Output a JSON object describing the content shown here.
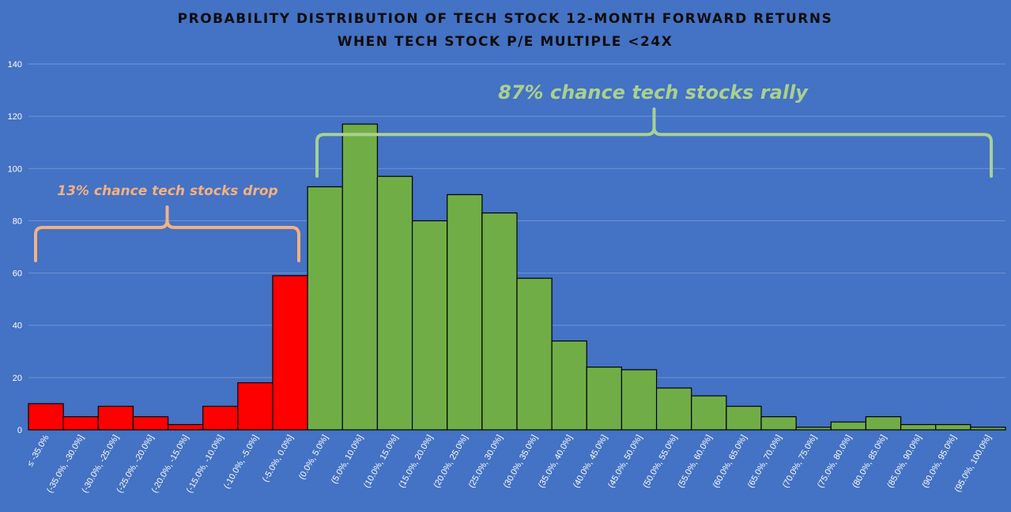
{
  "chart_data": {
    "type": "bar",
    "title": "PROBABILITY DISTRIBUTION OF TECH STOCK 12-MONTH FORWARD RETURNS",
    "subtitle": "WHEN TECH STOCK P/E MULTIPLE <24X",
    "xlabel": "",
    "ylabel": "",
    "ylim": [
      0,
      140
    ],
    "yticks": [
      0,
      20,
      40,
      60,
      80,
      100,
      120,
      140
    ],
    "grid": true,
    "categories": [
      "≤ -35.0%",
      "(-35.0%, -30.0%]",
      "(-30.0%, -25.0%]",
      "(-25.0%, -20.0%]",
      "(-20.0%, -15.0%]",
      "(-15.0%, -10.0%]",
      "(-10.0%, -5.0%]",
      "(-5.0%, 0.0%]",
      "(0.0%, 5.0%]",
      "(5.0%, 10.0%]",
      "(10.0%, 15.0%]",
      "(15.0%, 20.0%]",
      "(20.0%, 25.0%]",
      "(25.0%, 30.0%]",
      "(30.0%, 35.0%]",
      "(35.0%, 40.0%]",
      "(40.0%, 45.0%]",
      "(45.0%, 50.0%]",
      "(50.0%, 55.0%]",
      "(55.0%, 60.0%]",
      "(60.0%, 65.0%]",
      "(65.0%, 70.0%]",
      "(70.0%, 75.0%]",
      "(75.0%, 80.0%]",
      "(80.0%, 85.0%]",
      "(85.0%, 90.0%]",
      "(90.0%, 95.0%]",
      "(95.0%, 100.0%]"
    ],
    "values": [
      10,
      5,
      9,
      5,
      2,
      9,
      18,
      59,
      93,
      117,
      97,
      80,
      90,
      83,
      58,
      34,
      24,
      23,
      16,
      13,
      9,
      5,
      1,
      3,
      5,
      2,
      2,
      1
    ],
    "colors": {
      "background": "#4472c4",
      "negative_bar": "#ff0000",
      "positive_bar": "#70ad47",
      "bar_edge": "#000000",
      "grid": "#6f94d6",
      "drop_annotation": "#f4b183",
      "rally_annotation": "#a9d18e"
    },
    "annotations": [
      {
        "text": "13% chance tech stocks drop",
        "color": "#f4b183",
        "spans": [
          0,
          7
        ]
      },
      {
        "text": "87% chance tech stocks rally",
        "color": "#a9d18e",
        "spans": [
          8,
          27
        ]
      }
    ]
  }
}
